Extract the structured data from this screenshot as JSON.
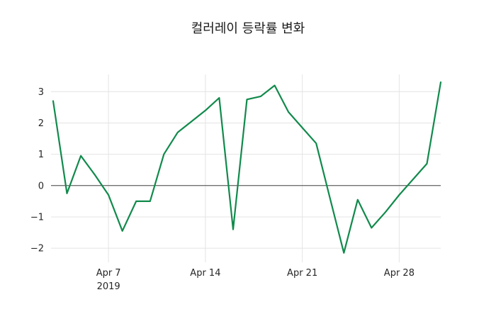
{
  "title": "컬러레이 등락률 변화",
  "chart_data": {
    "type": "line",
    "title": "컬러레이 등락률 변화",
    "series_name": "등락률",
    "line_color": "#118a4c",
    "grid": true,
    "legend": "none",
    "x": [
      "2019-04-03",
      "2019-04-04",
      "2019-04-05",
      "2019-04-06",
      "2019-04-07",
      "2019-04-08",
      "2019-04-09",
      "2019-04-10",
      "2019-04-11",
      "2019-04-12",
      "2019-04-13",
      "2019-04-14",
      "2019-04-15",
      "2019-04-16",
      "2019-04-17",
      "2019-04-18",
      "2019-04-19",
      "2019-04-20",
      "2019-04-21",
      "2019-04-22",
      "2019-04-23",
      "2019-04-24",
      "2019-04-25",
      "2019-04-26",
      "2019-04-27",
      "2019-04-28",
      "2019-04-29",
      "2019-04-30",
      "2019-05-01"
    ],
    "values": [
      2.7,
      -0.25,
      0.95,
      0.35,
      -0.3,
      -1.45,
      -0.5,
      -0.5,
      1.0,
      1.7,
      2.05,
      2.4,
      2.8,
      -1.4,
      2.75,
      2.85,
      3.2,
      2.35,
      1.85,
      1.35,
      -0.4,
      -2.15,
      -0.45,
      -1.35,
      -0.85,
      -0.3,
      0.2,
      0.7,
      3.3
    ],
    "ylim": [
      -2.45,
      3.55
    ],
    "yticks": [
      -2,
      -1,
      0,
      1,
      2,
      3
    ],
    "ytick_labels": [
      "−2",
      "−1",
      "0",
      "1",
      "2",
      "3"
    ],
    "xticks": [
      {
        "label": "Apr 7",
        "sublabel": "2019",
        "day_index": 4
      },
      {
        "label": "Apr 14",
        "sublabel": "",
        "day_index": 11
      },
      {
        "label": "Apr 21",
        "sublabel": "",
        "day_index": 18
      },
      {
        "label": "Apr 28",
        "sublabel": "",
        "day_index": 25
      }
    ]
  }
}
